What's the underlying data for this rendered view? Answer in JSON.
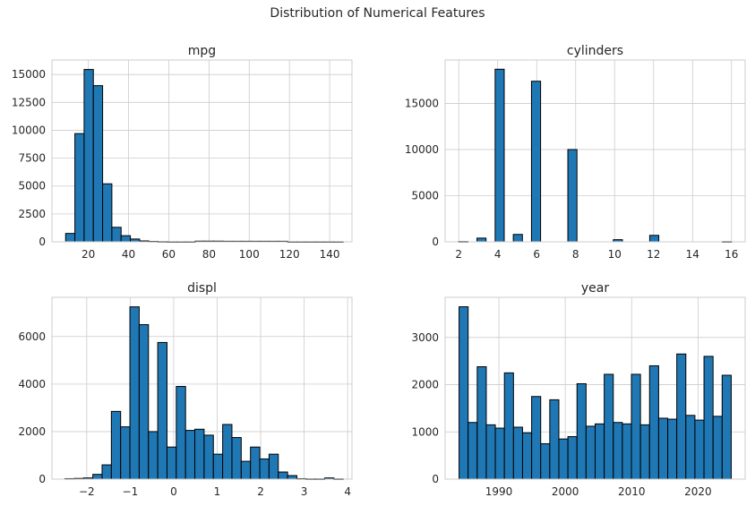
{
  "figure": {
    "title": "Distribution of Numerical Features"
  },
  "colors": {
    "bar_fill": "#1f77b4",
    "bar_edge": "#000000",
    "grid": "#cccccc",
    "axes_edge": "#cccccc",
    "text": "#262626"
  },
  "chart_data": [
    {
      "type": "bar",
      "title": "mpg",
      "xlabel": "",
      "ylabel": "",
      "grid": true,
      "xlim": [
        1.9,
        151.1
      ],
      "ylim": [
        0,
        16300
      ],
      "xticks": [
        20,
        40,
        60,
        80,
        100,
        120,
        140
      ],
      "xtick_labels": [
        "20",
        "40",
        "60",
        "80",
        "100",
        "120",
        "140"
      ],
      "yticks": [
        0,
        2500,
        5000,
        7500,
        10000,
        12500,
        15000
      ],
      "ytick_labels": [
        "0",
        "2500",
        "5000",
        "7500",
        "10000",
        "12500",
        "15000"
      ],
      "bin_start": 8.7,
      "bin_width": 4.6,
      "values": [
        750,
        9700,
        15450,
        14000,
        5200,
        1300,
        550,
        250,
        80,
        40,
        20,
        10,
        10,
        10,
        60,
        60,
        60,
        50,
        50,
        50,
        50,
        50,
        50,
        50,
        10,
        10,
        10,
        10,
        10,
        10
      ]
    },
    {
      "type": "bar",
      "title": "cylinders",
      "xlabel": "",
      "ylabel": "",
      "grid": true,
      "xlim": [
        1.3,
        16.7
      ],
      "ylim": [
        0,
        19700
      ],
      "xticks": [
        2,
        4,
        6,
        8,
        10,
        12,
        14,
        16
      ],
      "xtick_labels": [
        "2",
        "4",
        "6",
        "8",
        "10",
        "12",
        "14",
        "16"
      ],
      "yticks": [
        0,
        5000,
        10000,
        15000
      ],
      "ytick_labels": [
        "0",
        "5000",
        "10000",
        "15000"
      ],
      "bin_start": 2,
      "bin_width": 0.4667,
      "values": [
        30,
        0,
        400,
        0,
        18700,
        0,
        800,
        0,
        17400,
        0,
        0,
        0,
        10000,
        0,
        0,
        0,
        0,
        230,
        0,
        0,
        0,
        700,
        0,
        0,
        0,
        0,
        0,
        0,
        0,
        20
      ]
    },
    {
      "type": "bar",
      "title": "displ",
      "xlabel": "",
      "ylabel": "",
      "grid": true,
      "xlim": [
        -2.8,
        4.1
      ],
      "ylim": [
        0,
        7650
      ],
      "xticks": [
        -2,
        -1,
        0,
        1,
        2,
        3,
        4
      ],
      "xtick_labels": [
        "−2",
        "−1",
        "0",
        "1",
        "2",
        "3",
        "4"
      ],
      "yticks": [
        0,
        2000,
        4000,
        6000
      ],
      "ytick_labels": [
        "0",
        "2000",
        "4000",
        "6000"
      ],
      "bin_start": -2.5,
      "bin_width": 0.2133,
      "values": [
        20,
        30,
        50,
        200,
        600,
        2850,
        2200,
        7250,
        6500,
        2000,
        5750,
        1350,
        3900,
        2050,
        2100,
        1850,
        1050,
        2300,
        1750,
        750,
        1350,
        850,
        1050,
        300,
        150,
        20,
        10,
        10,
        50,
        10
      ]
    },
    {
      "type": "bar",
      "title": "year",
      "xlabel": "",
      "ylabel": "",
      "grid": true,
      "xlim": [
        1981.9,
        2027.1
      ],
      "ylim": [
        0,
        3850
      ],
      "xticks": [
        1990,
        2000,
        2010,
        2020
      ],
      "xtick_labels": [
        "1990",
        "2000",
        "2010",
        "2020"
      ],
      "yticks": [
        0,
        1000,
        2000,
        3000
      ],
      "ytick_labels": [
        "0",
        "1000",
        "2000",
        "3000"
      ],
      "bin_start": 1984,
      "bin_width": 1.3667,
      "values": [
        3650,
        1200,
        2380,
        1150,
        1080,
        2250,
        1100,
        980,
        1750,
        750,
        1680,
        850,
        900,
        2020,
        1120,
        1170,
        2220,
        1200,
        1170,
        2220,
        1150,
        2400,
        1290,
        1270,
        2650,
        1350,
        1250,
        2600,
        1330,
        2200
      ]
    }
  ]
}
